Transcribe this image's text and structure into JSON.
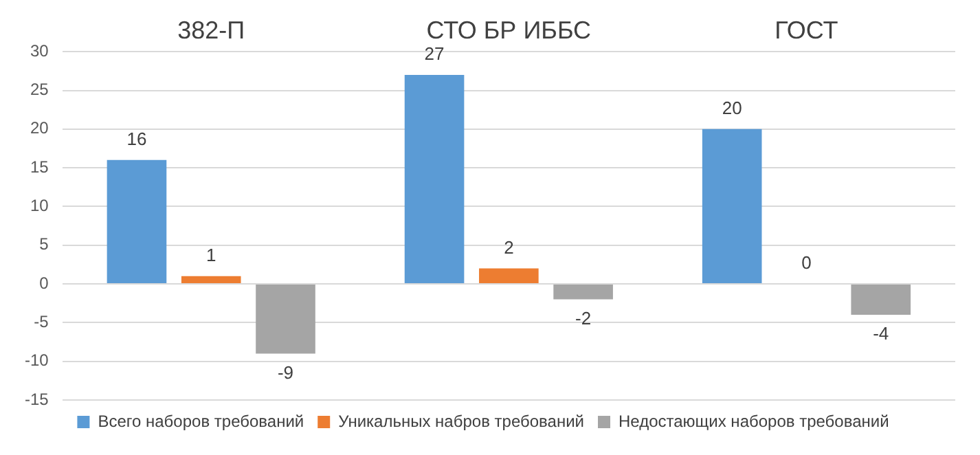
{
  "chart_data": {
    "type": "bar",
    "categories": [
      "382-П",
      "СТО БР ИББС",
      "ГОСТ"
    ],
    "series": [
      {
        "name": "Всего наборов требований",
        "color": "#5b9bd5",
        "values": [
          16,
          27,
          20
        ]
      },
      {
        "name": "Уникальных набров требований",
        "color": "#ed7d31",
        "values": [
          1,
          2,
          0
        ]
      },
      {
        "name": "Недостающих наборов требований",
        "color": "#a5a5a5",
        "values": [
          -9,
          -2,
          -4
        ]
      }
    ],
    "ylim": [
      -15,
      30
    ],
    "yticks": [
      -15,
      -10,
      -5,
      0,
      5,
      10,
      15,
      20,
      25,
      30
    ],
    "grid": "y",
    "legend": "bottom",
    "data_labels": true
  }
}
